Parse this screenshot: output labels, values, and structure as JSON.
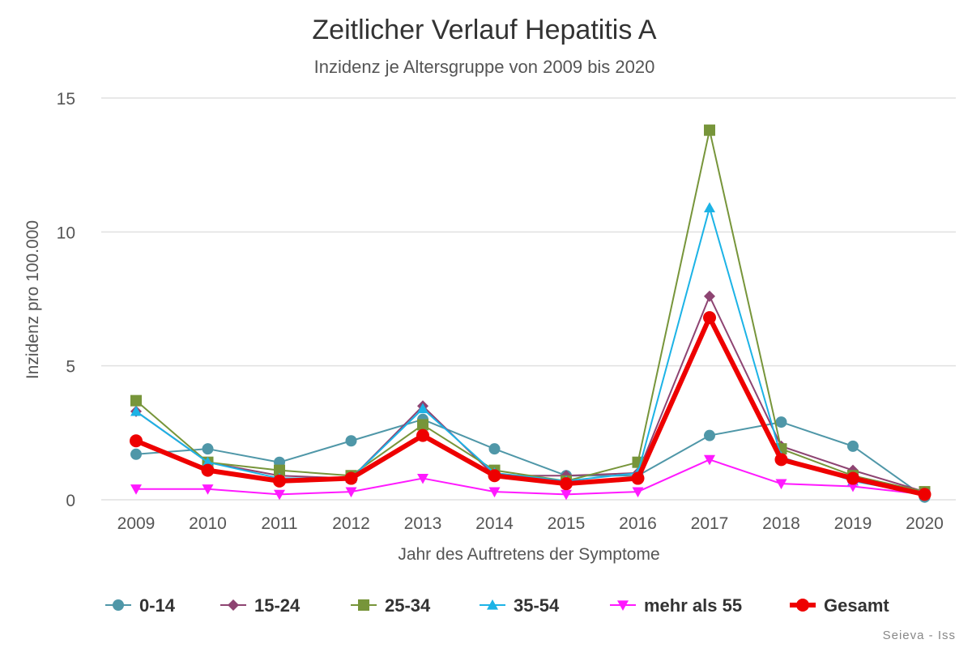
{
  "chart_data": {
    "type": "line",
    "title": "Zeitlicher Verlauf Hepatitis A",
    "subtitle": "Inzidenz je Altersgruppe von 2009 bis 2020",
    "xlabel": "Jahr des Auftretens der Symptome",
    "ylabel": "Inzidenz pro 100.000",
    "categories": [
      "2009",
      "2010",
      "2011",
      "2012",
      "2013",
      "2014",
      "2015",
      "2016",
      "2017",
      "2018",
      "2019",
      "2020"
    ],
    "y_ticks": [
      "0",
      "5",
      "10",
      "15"
    ],
    "ylim": [
      0,
      15
    ],
    "grid": true,
    "legend_position": "bottom",
    "credit": "Seieva - Iss",
    "series": [
      {
        "name": "0-14",
        "color": "#4f97a8",
        "marker": "circle",
        "width": 2,
        "values": [
          1.7,
          1.9,
          1.4,
          2.2,
          3.0,
          1.9,
          0.9,
          0.9,
          2.4,
          2.9,
          2.0,
          0.1
        ]
      },
      {
        "name": "15-24",
        "color": "#8e4472",
        "marker": "diamond",
        "width": 2,
        "values": [
          3.3,
          1.4,
          0.9,
          0.8,
          3.5,
          0.9,
          0.9,
          1.0,
          7.6,
          2.0,
          1.1,
          0.3
        ]
      },
      {
        "name": "25-34",
        "color": "#77953a",
        "marker": "square",
        "width": 2,
        "values": [
          3.7,
          1.4,
          1.1,
          0.9,
          2.8,
          1.1,
          0.7,
          1.4,
          13.8,
          1.9,
          0.9,
          0.3
        ]
      },
      {
        "name": "35-54",
        "color": "#1cb3e6",
        "marker": "triangle",
        "width": 2,
        "values": [
          3.3,
          1.4,
          0.8,
          0.8,
          3.4,
          1.0,
          0.7,
          1.0,
          10.9,
          1.6,
          0.7,
          0.2
        ]
      },
      {
        "name": "mehr als 55",
        "color": "#ff19ff",
        "marker": "triangle-down",
        "width": 2,
        "values": [
          0.4,
          0.4,
          0.2,
          0.3,
          0.8,
          0.3,
          0.2,
          0.3,
          1.5,
          0.6,
          0.5,
          0.2
        ]
      },
      {
        "name": "Gesamt",
        "color": "#ee0000",
        "marker": "circle",
        "width": 6,
        "values": [
          2.2,
          1.1,
          0.7,
          0.8,
          2.4,
          0.9,
          0.6,
          0.8,
          6.8,
          1.5,
          0.8,
          0.2
        ]
      }
    ]
  }
}
